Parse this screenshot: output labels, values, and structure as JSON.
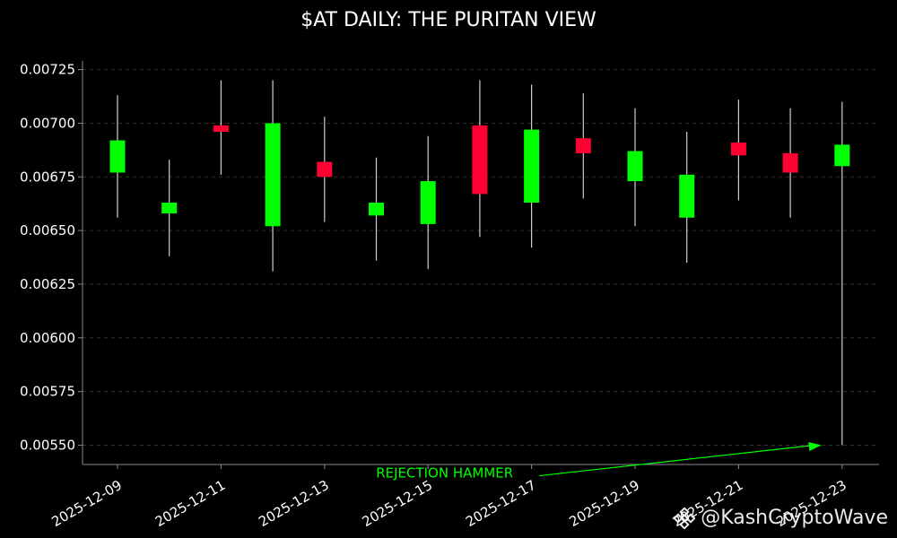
{
  "colors": {
    "background": "#000000",
    "up": "#00ff00",
    "down": "#ff0033",
    "wick": "#cfcfcf",
    "axis": "#888888",
    "grid": "#333333",
    "annotation": "#00ff00",
    "text": "#ffffff"
  },
  "watermark": {
    "icon": "binance-logo-icon",
    "text": "@KashCryptoWave"
  },
  "chart_data": {
    "type": "candlestick",
    "title": "$AT DAILY: THE PURITAN VIEW",
    "xlabel": "",
    "ylabel": "",
    "ylim": [
      0.00541,
      0.00729
    ],
    "grid": true,
    "yticks": [
      "0.00550",
      "0.00575",
      "0.00600",
      "0.00625",
      "0.00650",
      "0.00675",
      "0.00700",
      "0.00725"
    ],
    "xticks": [
      "2025-12-09",
      "2025-12-11",
      "2025-12-13",
      "2025-12-15",
      "2025-12-17",
      "2025-12-19",
      "2025-12-21",
      "2025-12-23"
    ],
    "candles": [
      {
        "date": "2025-12-09",
        "open": 0.00677,
        "high": 0.00713,
        "low": 0.00656,
        "close": 0.00692
      },
      {
        "date": "2025-12-10",
        "open": 0.00658,
        "high": 0.00683,
        "low": 0.00638,
        "close": 0.00663
      },
      {
        "date": "2025-12-11",
        "open": 0.00699,
        "high": 0.0072,
        "low": 0.00676,
        "close": 0.00696
      },
      {
        "date": "2025-12-12",
        "open": 0.00652,
        "high": 0.0072,
        "low": 0.00631,
        "close": 0.007
      },
      {
        "date": "2025-12-13",
        "open": 0.00682,
        "high": 0.00703,
        "low": 0.00654,
        "close": 0.00675
      },
      {
        "date": "2025-12-14",
        "open": 0.00657,
        "high": 0.00684,
        "low": 0.00636,
        "close": 0.00663
      },
      {
        "date": "2025-12-15",
        "open": 0.00653,
        "high": 0.00694,
        "low": 0.00632,
        "close": 0.00673
      },
      {
        "date": "2025-12-16",
        "open": 0.00699,
        "high": 0.0072,
        "low": 0.00647,
        "close": 0.00667
      },
      {
        "date": "2025-12-17",
        "open": 0.00663,
        "high": 0.00718,
        "low": 0.00642,
        "close": 0.00697
      },
      {
        "date": "2025-12-18",
        "open": 0.00693,
        "high": 0.00714,
        "low": 0.00665,
        "close": 0.00686
      },
      {
        "date": "2025-12-19",
        "open": 0.00673,
        "high": 0.00707,
        "low": 0.00652,
        "close": 0.00687
      },
      {
        "date": "2025-12-20",
        "open": 0.00656,
        "high": 0.00696,
        "low": 0.00635,
        "close": 0.00676
      },
      {
        "date": "2025-12-21",
        "open": 0.00691,
        "high": 0.00711,
        "low": 0.00664,
        "close": 0.00685
      },
      {
        "date": "2025-12-22",
        "open": 0.00686,
        "high": 0.00707,
        "low": 0.00656,
        "close": 0.00677
      },
      {
        "date": "2025-12-23",
        "open": 0.0068,
        "high": 0.0071,
        "low": 0.0055,
        "close": 0.0069
      }
    ],
    "annotations": [
      {
        "text": "REJECTION HAMMER",
        "text_x": "2025-12-15",
        "text_y": 0.00537,
        "arrow_to_x": "2025-12-22.6",
        "arrow_to_y": 0.0055
      }
    ]
  }
}
